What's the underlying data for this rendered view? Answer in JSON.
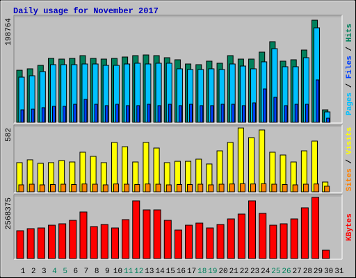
{
  "chart_data": [
    {
      "type": "bar",
      "title": "Daily usage for November 2017",
      "ylim": [
        0,
        198764
      ],
      "yticks": [
        198764
      ],
      "legend_separator": " / ",
      "series": [
        {
          "name": "Hits",
          "color": "#00805c",
          "values": [
            98000,
            100700,
            107200,
            120300,
            119000,
            120300,
            125500,
            120300,
            119000,
            120300,
            122900,
            125500,
            126800,
            125500,
            121600,
            117700,
            109800,
            108500,
            115100,
            111200,
            125500,
            119000,
            119000,
            132100,
            151700,
            115100,
            117700,
            136000,
            192200,
            23500,
            0
          ]
        },
        {
          "name": "Files",
          "color": "#0040ff",
          "values": [
            23500,
            24800,
            27500,
            30100,
            30100,
            34000,
            43200,
            34000,
            31400,
            34000,
            31400,
            31400,
            34000,
            31400,
            34000,
            31400,
            34000,
            31400,
            31400,
            34000,
            34000,
            31400,
            36600,
            62800,
            47100,
            31400,
            34000,
            34000,
            79800,
            7800,
            0
          ]
        },
        {
          "name": "Pages",
          "color": "#00c0ff",
          "values": [
            85000,
            87600,
            95500,
            108500,
            108500,
            108500,
            109800,
            109800,
            107200,
            107200,
            109800,
            111200,
            109800,
            111200,
            111200,
            100700,
            99400,
            99400,
            100700,
            99400,
            109800,
            105900,
            100700,
            113800,
            138600,
            104600,
            104600,
            121600,
            177800,
            19600,
            0
          ]
        }
      ]
    },
    {
      "type": "bar",
      "ylim": [
        0,
        582
      ],
      "yticks": [
        582
      ],
      "legend_separator": " / ",
      "series": [
        {
          "name": "Visits",
          "color": "#ffff00",
          "values": [
            260,
            285,
            254,
            260,
            279,
            266,
            353,
            316,
            260,
            440,
            402,
            266,
            440,
            390,
            260,
            272,
            272,
            291,
            248,
            365,
            440,
            569,
            483,
            551,
            353,
            328,
            266,
            365,
            452,
            87,
            0
          ]
        },
        {
          "name": "Sites",
          "color": "#ff8000",
          "values": [
            62,
            68,
            62,
            65,
            68,
            65,
            70,
            68,
            62,
            70,
            68,
            65,
            70,
            68,
            62,
            65,
            65,
            68,
            62,
            68,
            70,
            72,
            70,
            72,
            68,
            65,
            62,
            68,
            70,
            50,
            0
          ]
        }
      ]
    },
    {
      "type": "bar",
      "ylim": [
        0,
        2568375
      ],
      "yticks": [
        2568375
      ],
      "categories": [
        "1",
        "2",
        "3",
        "4",
        "5",
        "6",
        "7",
        "8",
        "9",
        "10",
        "11",
        "12",
        "13",
        "14",
        "15",
        "16",
        "17",
        "18",
        "19",
        "20",
        "21",
        "22",
        "23",
        "24",
        "25",
        "26",
        "27",
        "28",
        "29",
        "30",
        "31"
      ],
      "category_colors": [
        "#000000",
        "#000000",
        "#000000",
        "#00805c",
        "#00805c",
        "#000000",
        "#000000",
        "#000000",
        "#000000",
        "#000000",
        "#00805c",
        "#00805c",
        "#000000",
        "#000000",
        "#000000",
        "#000000",
        "#000000",
        "#00805c",
        "#00805c",
        "#000000",
        "#000000",
        "#000000",
        "#000000",
        "#000000",
        "#00805c",
        "#00805c",
        "#000000",
        "#000000",
        "#000000",
        "#000000",
        "#000000"
      ],
      "series": [
        {
          "name": "KBytes",
          "color": "#ff0000",
          "values": [
            1141500,
            1227100,
            1255600,
            1369800,
            1426900,
            1569500,
            1912000,
            1312700,
            1398300,
            1255600,
            1598100,
            2368600,
            1997600,
            1997600,
            1569500,
            1170000,
            1369800,
            1455400,
            1255600,
            1398300,
            1626600,
            1826400,
            2368600,
            1854900,
            1369800,
            1426900,
            1626600,
            2083200,
            2511300,
            342400,
            0
          ]
        }
      ]
    }
  ]
}
